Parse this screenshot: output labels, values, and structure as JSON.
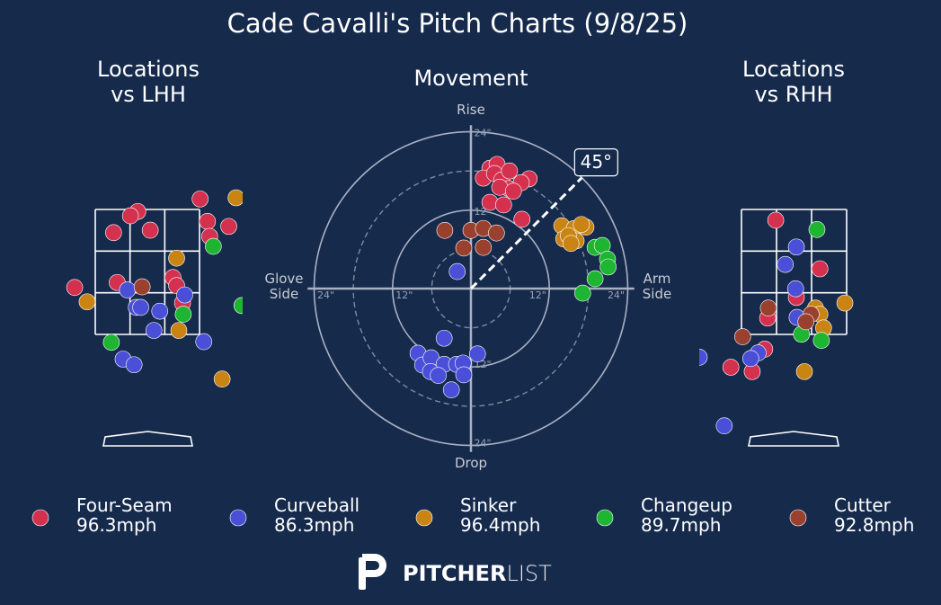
{
  "title": "Cade Cavalli's Pitch Charts (9/8/25)",
  "logo": {
    "bold": "PITCHER",
    "light": "LIST"
  },
  "chart_data": [
    {
      "type": "scatter",
      "title": "Locations\nvs LHH",
      "xlim": [
        -1.15,
        1.3
      ],
      "ylim": [
        -0.35,
        4.7
      ],
      "series": [
        {
          "color": "#d4314f",
          "x": [
            0.72,
            -0.13,
            -0.23,
            0.04,
            -0.46,
            0.82,
            1.11,
            0.85,
            -0.99,
            -0.41,
            0.35,
            0.4,
            0.48
          ],
          "values": [
            3.67,
            3.47,
            3.4,
            3.17,
            3.13,
            3.31,
            3.23,
            3.07,
            2.25,
            2.33,
            2.41,
            2.28,
            2.0
          ]
        },
        {
          "color": "#4a4fd8",
          "x": [
            -0.27,
            -0.15,
            -0.09,
            0.17,
            0.51,
            0.09,
            0.77,
            -0.33,
            -0.18
          ],
          "values": [
            2.21,
            1.93,
            1.93,
            1.87,
            2.13,
            1.56,
            1.38,
            1.1,
            1.01
          ]
        },
        {
          "color": "#c98414",
          "x": [
            1.21,
            0.4,
            -0.82,
            0.43,
            1.02
          ],
          "values": [
            3.69,
            2.72,
            2.02,
            1.56,
            0.78
          ]
        },
        {
          "color": "#1db532",
          "x": [
            0.9,
            1.29,
            0.49,
            -0.49
          ],
          "values": [
            2.91,
            1.96,
            1.82,
            1.37
          ]
        },
        {
          "color": "#9a402e",
          "x": [
            -0.07
          ],
          "values": [
            2.26
          ]
        }
      ]
    },
    {
      "type": "polar",
      "title": "Movement",
      "top_label": "Rise",
      "bottom_label": "Drop",
      "left_label": "Glove\nSide",
      "right_label": "Arm\nSide",
      "xlim": [
        -25,
        25
      ],
      "ylim": [
        -25,
        25
      ],
      "ticks": [
        {
          "value": 12,
          "label": "12\""
        },
        {
          "value": 24,
          "label": "24\""
        }
      ],
      "minor_ticks": [
        6,
        18
      ],
      "arm_angle": {
        "value": 45,
        "label": "45°"
      },
      "series": [
        {
          "name": "Four-Seam",
          "speed": "96.3mph",
          "color": "#d4314f",
          "x": [
            2.9,
            4.0,
            1.9,
            3.6,
            4.7,
            5.9,
            5.8,
            4.4,
            2.9,
            5.0,
            8.9,
            7.7,
            7.8,
            6.5
          ],
          "values": [
            18.4,
            19.0,
            16.9,
            17.6,
            16.6,
            18.0,
            15.3,
            15.5,
            13.2,
            12.8,
            16.8,
            16.2,
            10.6,
            14.9
          ]
        },
        {
          "name": "Curveball",
          "speed": "86.3mph",
          "color": "#4a4fd8",
          "x": [
            -2.1,
            -4.1,
            -8.1,
            1.0,
            -7.4,
            -6.1,
            -4.1,
            -2.2,
            -1.2,
            -6.2,
            -5.0,
            -1.1,
            -3.0
          ],
          "values": [
            2.6,
            -7.6,
            -9.9,
            -10.0,
            -11.7,
            -10.6,
            -11.6,
            -11.6,
            -11.4,
            -12.7,
            -13.3,
            -13.2,
            -15.5
          ]
        },
        {
          "name": "Sinker",
          "speed": "96.4mph",
          "color": "#c98414",
          "x": [
            13.9,
            15.8,
            17.6,
            16.9,
            14.2,
            16.1,
            14.9,
            15.3
          ],
          "values": [
            9.6,
            9.2,
            9.4,
            9.8,
            7.6,
            7.3,
            8.1,
            6.9
          ]
        },
        {
          "name": "Changeup",
          "speed": "89.7mph",
          "color": "#1db532",
          "x": [
            19.0,
            20.1,
            20.9,
            21.0,
            19.0,
            17.1
          ],
          "values": [
            6.3,
            6.6,
            4.5,
            3.3,
            1.5,
            -0.7
          ]
        },
        {
          "name": "Cutter",
          "speed": "92.8mph",
          "color": "#9a402e",
          "x": [
            -4.0,
            0,
            1.9,
            3.9,
            -1.1,
            1.9
          ],
          "values": [
            8.9,
            8.9,
            9.2,
            8.5,
            6.2,
            6.3
          ]
        }
      ]
    },
    {
      "type": "scatter",
      "title": "Locations\nvs RHH",
      "xlim": [
        -1.29,
        1.3
      ],
      "ylim": [
        -0.35,
        4.7
      ],
      "series": [
        {
          "color": "#d4314f",
          "x": [
            -0.25,
            0.35,
            0.03,
            -0.36,
            -0.4,
            -0.57,
            -0.86
          ],
          "values": [
            3.33,
            2.55,
            2.09,
            1.76,
            1.26,
            0.9,
            0.97
          ]
        },
        {
          "color": "#4a4fd8",
          "x": [
            0.03,
            -0.12,
            0.02,
            0.04,
            -0.49,
            -0.59,
            -1.29,
            -0.95
          ],
          "values": [
            2.9,
            2.62,
            2.23,
            1.77,
            1.2,
            1.11,
            1.13,
            0.03
          ]
        },
        {
          "color": "#c98414",
          "x": [
            0.69,
            0.29,
            0.35,
            0.4,
            0.14
          ],
          "values": [
            2.0,
            1.92,
            1.82,
            1.6,
            0.9
          ]
        },
        {
          "color": "#1db532",
          "x": [
            0.31,
            0.1,
            0.37
          ],
          "values": [
            3.18,
            1.5,
            1.4
          ]
        },
        {
          "color": "#9a402e",
          "x": [
            -0.35,
            0.23,
            0.16,
            -0.7
          ],
          "values": [
            1.92,
            1.82,
            1.7,
            1.46
          ]
        }
      ]
    }
  ]
}
